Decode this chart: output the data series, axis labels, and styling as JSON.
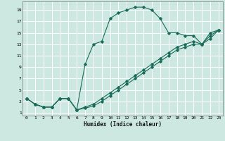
{
  "xlabel": "Humidex (Indice chaleur)",
  "xlim": [
    -0.5,
    23.5
  ],
  "ylim": [
    0.5,
    20.5
  ],
  "xticks": [
    0,
    1,
    2,
    3,
    4,
    5,
    6,
    7,
    8,
    9,
    10,
    11,
    12,
    13,
    14,
    15,
    16,
    17,
    18,
    19,
    20,
    21,
    22,
    23
  ],
  "yticks": [
    1,
    3,
    5,
    7,
    9,
    11,
    13,
    15,
    17,
    19
  ],
  "bg_color": "#cce8e0",
  "line_color": "#1a6b5a",
  "grid_color": "#ffffff",
  "line1_x": [
    0,
    1,
    2,
    3,
    4,
    5,
    6,
    7,
    8,
    9,
    10,
    11,
    12,
    13,
    14,
    15,
    16,
    17,
    18,
    19,
    20,
    21,
    22,
    23
  ],
  "line1_y": [
    3.5,
    2.5,
    2.0,
    2.0,
    3.5,
    3.5,
    1.5,
    9.5,
    13.0,
    13.5,
    17.5,
    18.5,
    19.0,
    19.5,
    19.5,
    19.0,
    17.5,
    15.0,
    15.0,
    14.5,
    14.5,
    13.0,
    15.0,
    15.5
  ],
  "line2_x": [
    0,
    1,
    2,
    3,
    4,
    5,
    6,
    7,
    8,
    9,
    10,
    11,
    12,
    13,
    14,
    15,
    16,
    17,
    18,
    19,
    20,
    21,
    22,
    23
  ],
  "line2_y": [
    3.5,
    2.5,
    2.0,
    2.0,
    3.5,
    3.5,
    1.5,
    2.0,
    2.5,
    3.5,
    4.5,
    5.5,
    6.5,
    7.5,
    8.5,
    9.5,
    10.5,
    11.5,
    12.5,
    13.0,
    13.5,
    13.0,
    14.5,
    15.5
  ],
  "line3_x": [
    0,
    1,
    2,
    3,
    4,
    5,
    6,
    7,
    8,
    9,
    10,
    11,
    12,
    13,
    14,
    15,
    16,
    17,
    18,
    19,
    20,
    21,
    22,
    23
  ],
  "line3_y": [
    3.5,
    2.5,
    2.0,
    2.0,
    3.5,
    3.5,
    1.5,
    1.8,
    2.2,
    3.0,
    4.0,
    5.0,
    6.0,
    7.0,
    8.0,
    9.0,
    10.0,
    11.0,
    12.0,
    12.5,
    13.0,
    13.0,
    14.0,
    15.5
  ]
}
